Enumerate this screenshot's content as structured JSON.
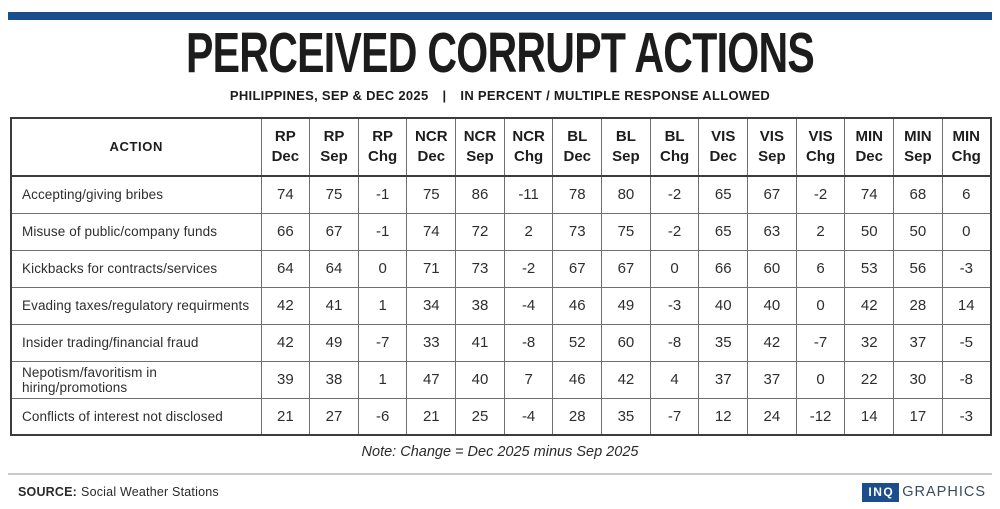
{
  "header": {
    "title": "PERCEIVED CORRUPT ACTIONS",
    "subtitle_left": "PHILIPPINES, SEP & DEC 2025",
    "subtitle_divider": "|",
    "subtitle_right": "IN PERCENT / MULTIPLE RESPONSE ALLOWED"
  },
  "chart_data": {
    "type": "table",
    "columns": [
      "ACTION",
      "RP Dec",
      "RP Sep",
      "RP Chg",
      "NCR Dec",
      "NCR Sep",
      "NCR Chg",
      "BL Dec",
      "BL Sep",
      "BL Chg",
      "VIS Dec",
      "VIS Sep",
      "VIS Chg",
      "MIN Dec",
      "MIN Sep",
      "MIN Chg"
    ],
    "rows": [
      [
        "Accepting/giving bribes",
        74,
        75,
        -1,
        75,
        86,
        -11,
        78,
        80,
        -2,
        65,
        67,
        -2,
        74,
        68,
        6
      ],
      [
        "Misuse of public/company funds",
        66,
        67,
        -1,
        74,
        72,
        2,
        73,
        75,
        -2,
        65,
        63,
        2,
        50,
        50,
        0
      ],
      [
        "Kickbacks for contracts/services",
        64,
        64,
        0,
        71,
        73,
        -2,
        67,
        67,
        0,
        66,
        60,
        6,
        53,
        56,
        -3
      ],
      [
        "Evading taxes/regulatory requirments",
        42,
        41,
        1,
        34,
        38,
        -4,
        46,
        49,
        -3,
        40,
        40,
        0,
        42,
        28,
        14
      ],
      [
        "Insider trading/financial fraud",
        42,
        49,
        -7,
        33,
        41,
        -8,
        52,
        60,
        -8,
        35,
        42,
        -7,
        32,
        37,
        -5
      ],
      [
        "Nepotism/favoritism in hiring/promotions",
        39,
        38,
        1,
        47,
        40,
        7,
        46,
        42,
        4,
        37,
        37,
        0,
        22,
        30,
        -8
      ],
      [
        "Conflicts of interest not disclosed",
        21,
        27,
        -6,
        21,
        25,
        -4,
        28,
        35,
        -7,
        12,
        24,
        -12,
        14,
        17,
        -3
      ]
    ],
    "title": "PERCEIVED CORRUPT ACTIONS",
    "subtitle": "PHILIPPINES, SEP & DEC 2025 | IN PERCENT / MULTIPLE RESPONSE ALLOWED",
    "note": "Note: Change = Dec 2025 minus Sep 2025"
  },
  "note": "Note: Change = Dec 2025 minus Sep 2025",
  "footer": {
    "source_label": "SOURCE:",
    "source_value": "Social Weather Stations",
    "logo_inq": "INQ",
    "logo_graphics": "GRAPHICS"
  },
  "colors": {
    "accent_blue": "#1b4e8c",
    "title_text": "#1c1c1c",
    "body_text": "#2e2e2e",
    "table_outer_border": "#3c3c3c",
    "table_inner_border": "#6e6e6e",
    "divider_gray": "#c9c9c9",
    "logo_graphics_text": "#3d4a5d"
  }
}
